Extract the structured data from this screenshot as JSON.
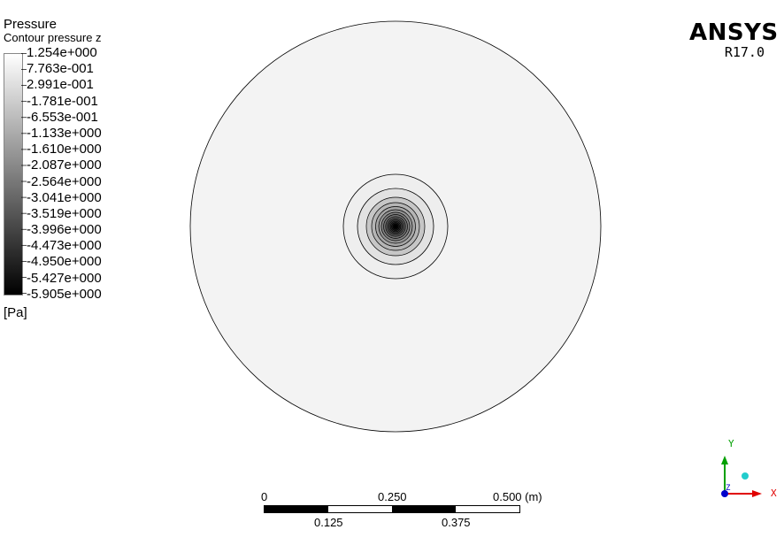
{
  "legend": {
    "title": "Pressure",
    "subtitle": "Contour pressure z",
    "unit": "[Pa]",
    "levels": [
      "1.254e+000",
      "7.763e-001",
      "2.991e-001",
      "-1.781e-001",
      "-6.553e-001",
      "-1.133e+000",
      "-1.610e+000",
      "-2.087e+000",
      "-2.564e+000",
      "-3.041e+000",
      "-3.519e+000",
      "-3.996e+000",
      "-4.473e+000",
      "-4.950e+000",
      "-5.427e+000",
      "-5.905e+000"
    ]
  },
  "brand": {
    "name": "ANSYS",
    "version": "R17.0"
  },
  "scale": {
    "top_labels": [
      "0",
      "0.250",
      "0.500  (m)"
    ],
    "bottom_labels": [
      "0.125",
      "0.375"
    ]
  },
  "axes": {
    "x_label": "X",
    "y_label": "Y",
    "z_label": "Z"
  },
  "colors": {
    "background": "#ffffff",
    "low": "#000000",
    "high": "#ffffff",
    "x_axis": "#e00000",
    "y_axis": "#00a000",
    "z_axis": "#0000cc"
  }
}
